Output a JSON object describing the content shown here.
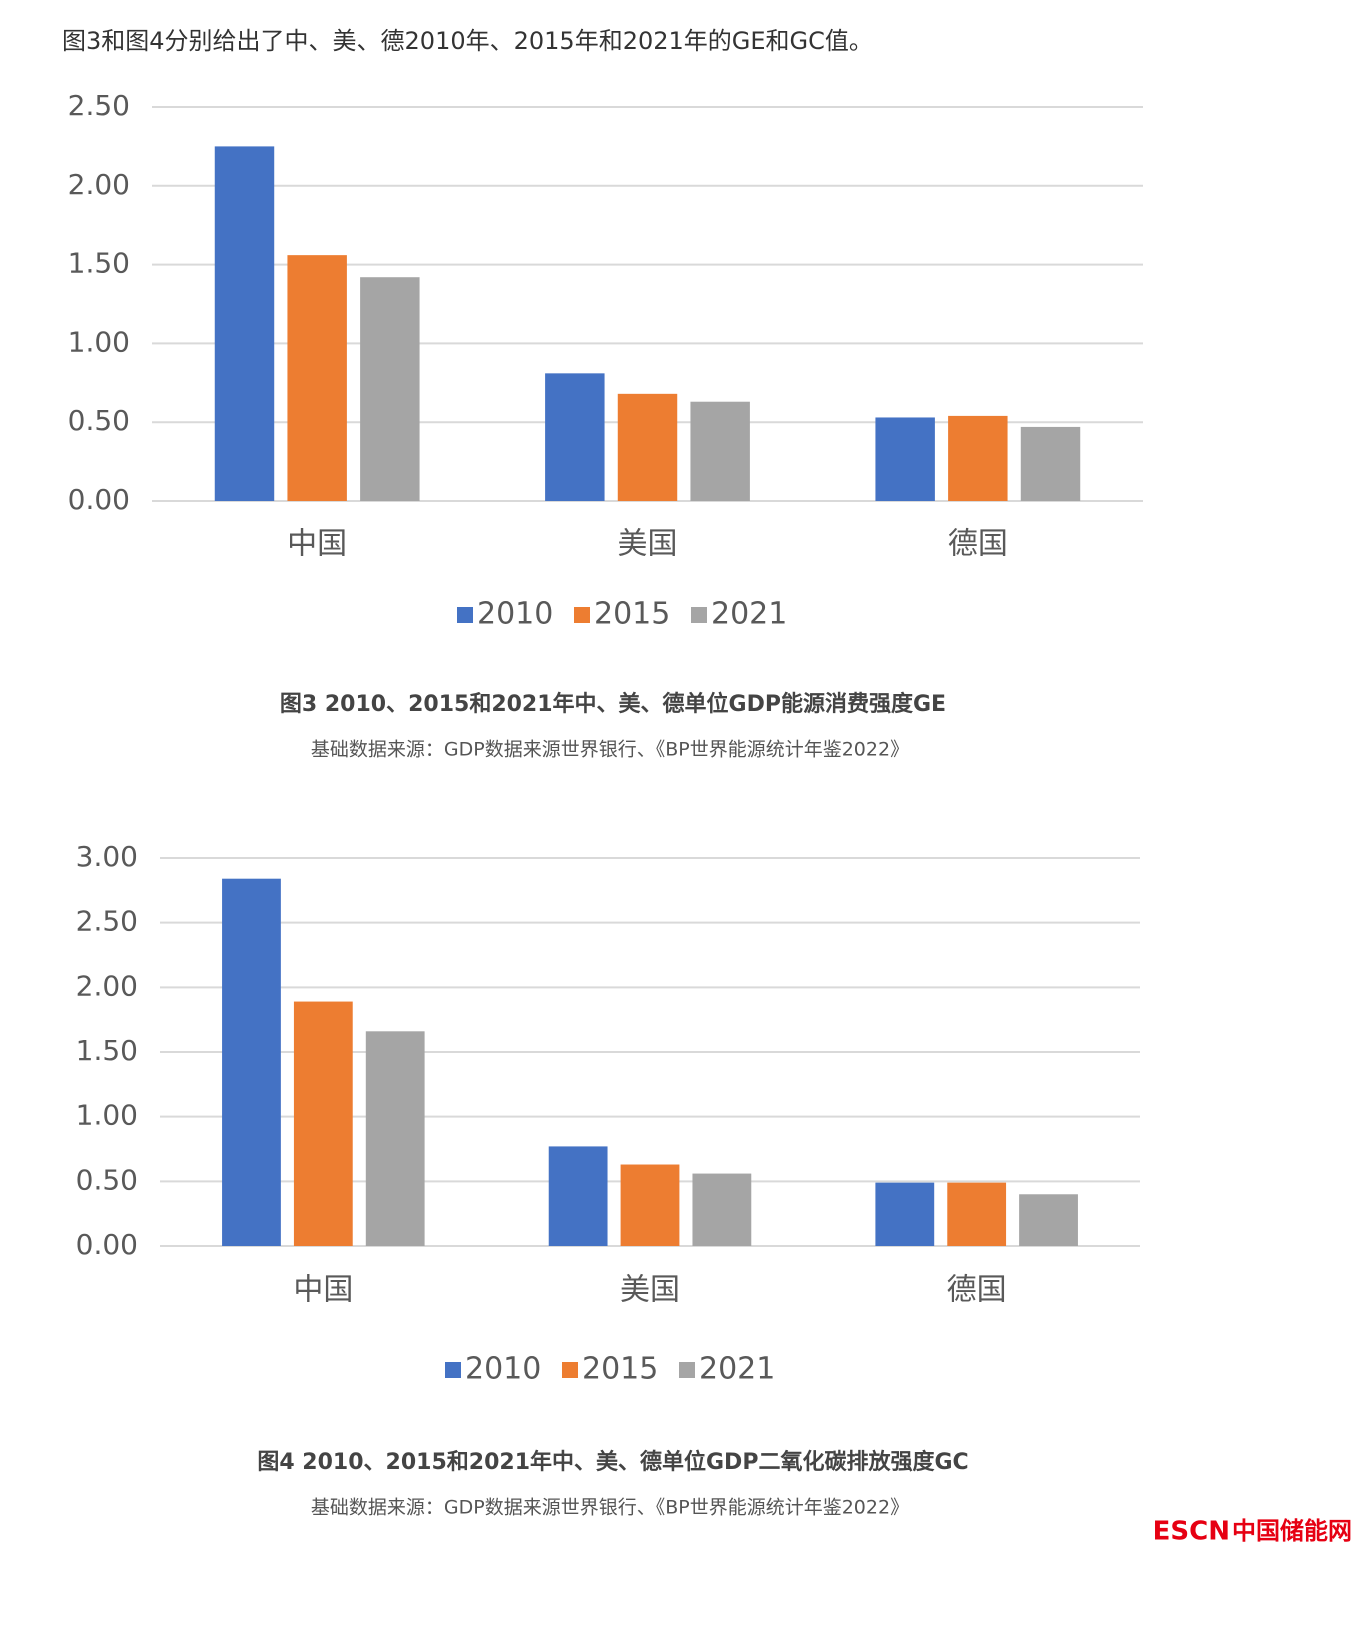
{
  "intro": "图3和图4分别给出了中、美、德2010年、2015年和2021年的GE和GC值。",
  "chart_data": [
    {
      "type": "bar",
      "title": "图3  2010、2015和2021年中、美、德单位GDP能源消费强度GE",
      "source": "基础数据来源：GDP数据来源世界银行、《BP世界能源统计年鉴2022》",
      "categories": [
        "中国",
        "美国",
        "德国"
      ],
      "series": [
        {
          "name": "2010",
          "color": "#4472c4",
          "values": [
            2.25,
            0.81,
            0.53
          ]
        },
        {
          "name": "2015",
          "color": "#ed7d31",
          "values": [
            1.56,
            0.68,
            0.54
          ]
        },
        {
          "name": "2021",
          "color": "#a5a5a5",
          "values": [
            1.42,
            0.63,
            0.47
          ]
        }
      ],
      "ylim": [
        0,
        2.5
      ],
      "yticks": [
        {
          "value": 0,
          "label": "0.00"
        },
        {
          "value": 0.5,
          "label": "0.50"
        },
        {
          "value": 1,
          "label": "1.00"
        },
        {
          "value": 1.5,
          "label": "1.50"
        },
        {
          "value": 2,
          "label": "2.00"
        },
        {
          "value": 2.5,
          "label": "2.50"
        }
      ],
      "grid": true,
      "legend": "bottom"
    },
    {
      "type": "bar",
      "title": "图4  2010、2015和2021年中、美、德单位GDP二氧化碳排放强度GC",
      "source": "基础数据来源：GDP数据来源世界银行、《BP世界能源统计年鉴2022》",
      "categories": [
        "中国",
        "美国",
        "德国"
      ],
      "series": [
        {
          "name": "2010",
          "color": "#4472c4",
          "values": [
            2.84,
            0.77,
            0.49
          ]
        },
        {
          "name": "2015",
          "color": "#ed7d31",
          "values": [
            1.89,
            0.63,
            0.49
          ]
        },
        {
          "name": "2021",
          "color": "#a5a5a5",
          "values": [
            1.66,
            0.56,
            0.4
          ]
        }
      ],
      "ylim": [
        0,
        3
      ],
      "yticks": [
        {
          "value": 0,
          "label": "0.00"
        },
        {
          "value": 0.5,
          "label": "0.50"
        },
        {
          "value": 1,
          "label": "1.00"
        },
        {
          "value": 1.5,
          "label": "1.50"
        },
        {
          "value": 2,
          "label": "2.00"
        },
        {
          "value": 2.5,
          "label": "2.50"
        },
        {
          "value": 3,
          "label": "3.00"
        }
      ],
      "grid": true,
      "legend": "bottom"
    }
  ],
  "watermark": {
    "brand": "ESCN",
    "name": "中国储能网"
  }
}
